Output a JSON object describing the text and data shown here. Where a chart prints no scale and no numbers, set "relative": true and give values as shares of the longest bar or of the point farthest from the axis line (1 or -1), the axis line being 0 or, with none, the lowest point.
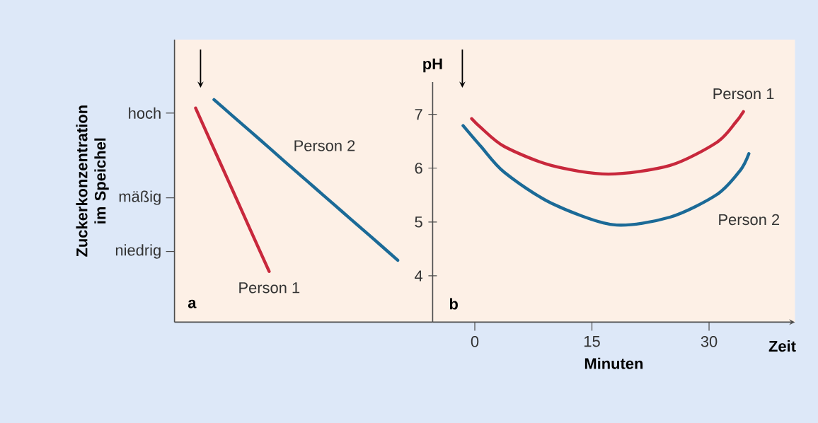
{
  "chart_data": [
    {
      "type": "line",
      "ylabel": "Zuckerkonzentration im Speichel",
      "relative": true,
      "categories": [
        null,
        null,
        null,
        null,
        null,
        null,
        null,
        null,
        null,
        null,
        null,
        null
      ],
      "series": [
        {
          "name": "Person 1",
          "color": "#c8283c",
          "values": [
            0.962,
            0.778,
            0.595,
            0.411,
            0.228,
            null,
            null,
            null,
            null,
            null,
            null,
            null
          ]
        },
        {
          "name": "Person 2",
          "color": "#1b6a97",
          "values": [
            null,
            1,
            0.928,
            0.856,
            0.784,
            0.711,
            0.639,
            0.567,
            0.495,
            0.423,
            0.351,
            0.278
          ]
        }
      ],
      "annotations": [
        "a",
        "hoch",
        "mäßig",
        "niedrig"
      ]
    },
    {
      "type": "line",
      "ylabel": "pH",
      "xlabel": "Minuten",
      "xlim": [
        -5.4,
        41
      ],
      "ylim": [
        3.14,
        7.6
      ],
      "xticks": [
        0,
        15,
        30
      ],
      "yticks": [
        4,
        5,
        6,
        7
      ],
      "series": [
        {
          "name": "Person 1",
          "color": "#c8283c",
          "x": [
            -0.4,
            0.8,
            3.8,
            9.8,
            17.1,
            25,
            31,
            33.4,
            34.4
          ],
          "values": [
            6.92,
            6.75,
            6.4,
            6.05,
            5.89,
            6.05,
            6.48,
            6.85,
            7.05
          ]
        },
        {
          "name": "Person 2",
          "color": "#1b6a97",
          "x": [
            -1.5,
            0.8,
            3.8,
            9.8,
            17.7,
            25,
            31,
            34,
            35.1
          ],
          "values": [
            6.79,
            6.4,
            5.92,
            5.35,
            4.95,
            5.09,
            5.51,
            5.96,
            6.27
          ]
        }
      ],
      "annotations": [
        "b",
        "Zeit"
      ]
    }
  ]
}
